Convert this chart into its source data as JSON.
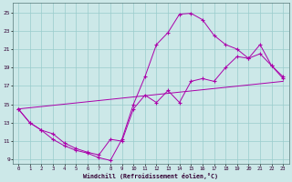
{
  "xlabel": "Windchill (Refroidissement éolien,°C)",
  "line_color": "#aa00aa",
  "bg_color": "#cce8e8",
  "grid_color": "#99cccc",
  "xlim": [
    -0.5,
    23.5
  ],
  "ylim": [
    8.5,
    26.0
  ],
  "xticks": [
    0,
    1,
    2,
    3,
    4,
    5,
    6,
    7,
    8,
    9,
    10,
    11,
    12,
    13,
    14,
    15,
    16,
    17,
    18,
    19,
    20,
    21,
    22,
    23
  ],
  "yticks": [
    9,
    11,
    13,
    15,
    17,
    19,
    21,
    23,
    25
  ],
  "line1_x": [
    0,
    1,
    2,
    3,
    4,
    5,
    6,
    7,
    8,
    9,
    10,
    11,
    12,
    13,
    14,
    15,
    16,
    17,
    18,
    19,
    20,
    21,
    22,
    23
  ],
  "line1_y": [
    14.5,
    13.0,
    12.2,
    11.2,
    10.5,
    10.0,
    9.7,
    9.2,
    8.9,
    11.2,
    15.0,
    18.0,
    21.5,
    22.8,
    24.8,
    24.9,
    24.2,
    22.5,
    21.5,
    21.0,
    20.0,
    21.5,
    19.2,
    18.0
  ],
  "line2_x": [
    0,
    23
  ],
  "line2_y": [
    14.5,
    17.5
  ],
  "line3_x": [
    0,
    1,
    2,
    3,
    4,
    5,
    6,
    7,
    8,
    9,
    10,
    11,
    12,
    13,
    14,
    15,
    16,
    17,
    18,
    19,
    20,
    21,
    22,
    23
  ],
  "line3_y": [
    14.5,
    13.0,
    12.2,
    11.8,
    10.8,
    10.2,
    9.8,
    9.5,
    11.2,
    11.0,
    14.5,
    16.0,
    15.2,
    16.5,
    15.2,
    17.5,
    17.8,
    17.5,
    19.0,
    20.2,
    20.0,
    20.5,
    19.2,
    17.8
  ]
}
